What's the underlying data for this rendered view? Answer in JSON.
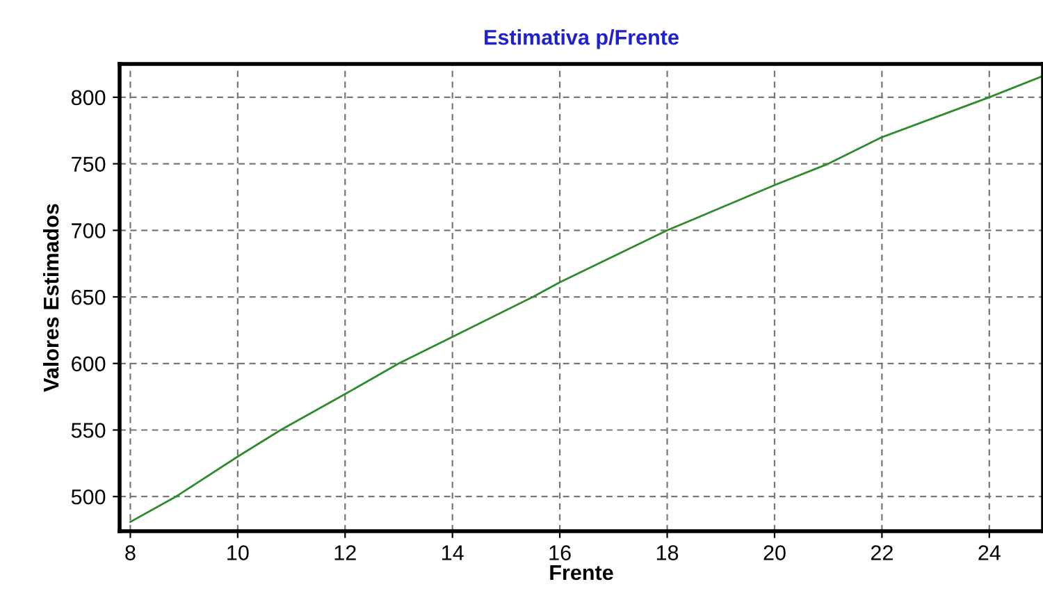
{
  "chart_data": {
    "type": "line",
    "title": "Estimativa p/Frente",
    "xlabel": "Frente",
    "ylabel": "Valores Estimados",
    "series": [
      {
        "color": "#2e8b2e",
        "x": [
          8,
          8.85,
          10,
          10.8,
          12,
          13,
          14,
          15.5,
          16,
          18,
          20,
          21,
          22,
          24,
          25
        ],
        "values": [
          481,
          500,
          530,
          550,
          577,
          600,
          620,
          650,
          661,
          700,
          734,
          750,
          770,
          800,
          816
        ]
      }
    ],
    "xlim": [
      7.8,
      25
    ],
    "ylim": [
      474,
      825
    ],
    "xticks": [
      8,
      10,
      12,
      14,
      16,
      18,
      20,
      22,
      24
    ],
    "yticks": [
      500,
      550,
      600,
      650,
      700,
      750,
      800
    ],
    "grid": true,
    "legend": false,
    "marker": "none",
    "line_style": "solid"
  }
}
